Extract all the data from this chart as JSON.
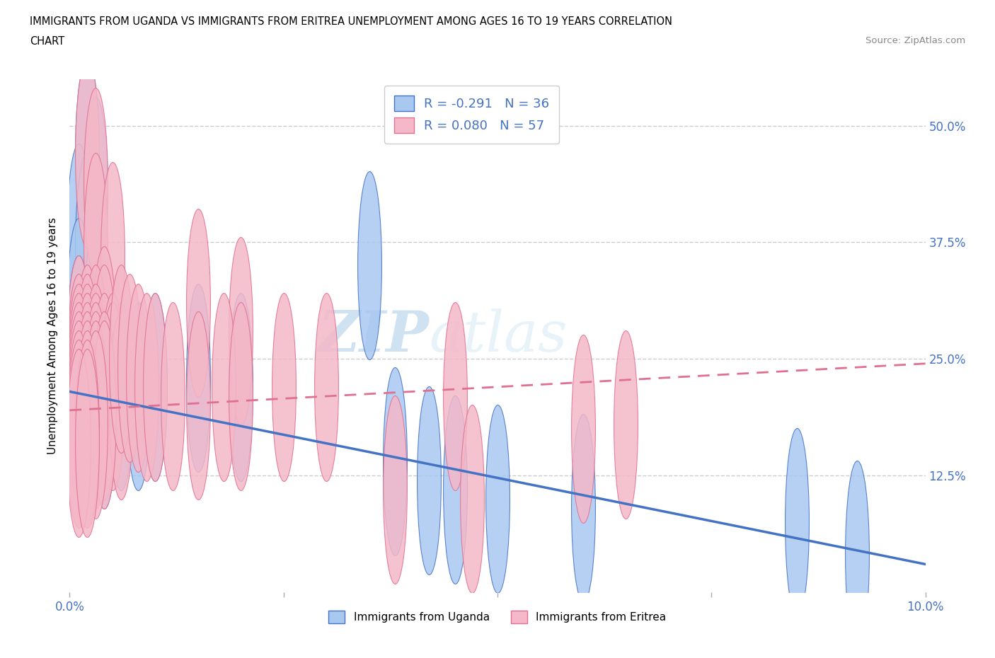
{
  "title_line1": "IMMIGRANTS FROM UGANDA VS IMMIGRANTS FROM ERITREA UNEMPLOYMENT AMONG AGES 16 TO 19 YEARS CORRELATION",
  "title_line2": "CHART",
  "source": "Source: ZipAtlas.com",
  "ylabel": "Unemployment Among Ages 16 to 19 years",
  "legend_label1": "Immigrants from Uganda",
  "legend_label2": "Immigrants from Eritrea",
  "R1": -0.291,
  "N1": 36,
  "R2": 0.08,
  "N2": 57,
  "color_uganda": "#a8c8f0",
  "color_eritrea": "#f4b8c8",
  "line_color_uganda": "#4472c4",
  "line_color_eritrea": "#e07090",
  "xlim": [
    0.0,
    0.1
  ],
  "ylim": [
    0.0,
    0.55
  ],
  "xtick_positions": [
    0.0,
    0.025,
    0.05,
    0.075,
    0.1
  ],
  "xtick_labels_show": [
    "0.0%",
    "",
    "",
    "",
    "10.0%"
  ],
  "ytick_positions": [
    0.125,
    0.25,
    0.375,
    0.5
  ],
  "ytick_labels": [
    "12.5%",
    "25.0%",
    "37.5%",
    "50.0%"
  ],
  "uganda_line_y0": 0.215,
  "uganda_line_y1": 0.03,
  "eritrea_line_y0": 0.195,
  "eritrea_line_y1": 0.245,
  "uganda_points": [
    [
      0.002,
      0.47
    ],
    [
      0.003,
      0.43
    ],
    [
      0.001,
      0.38
    ],
    [
      0.002,
      0.37
    ],
    [
      0.001,
      0.3
    ],
    [
      0.003,
      0.29
    ],
    [
      0.001,
      0.26
    ],
    [
      0.002,
      0.25
    ],
    [
      0.003,
      0.25
    ],
    [
      0.001,
      0.24
    ],
    [
      0.002,
      0.23
    ],
    [
      0.004,
      0.23
    ],
    [
      0.001,
      0.22
    ],
    [
      0.002,
      0.22
    ],
    [
      0.003,
      0.21
    ],
    [
      0.001,
      0.21
    ],
    [
      0.002,
      0.21
    ],
    [
      0.004,
      0.21
    ],
    [
      0.001,
      0.2
    ],
    [
      0.003,
      0.2
    ],
    [
      0.002,
      0.19
    ],
    [
      0.004,
      0.19
    ],
    [
      0.005,
      0.22
    ],
    [
      0.006,
      0.21
    ],
    [
      0.008,
      0.21
    ],
    [
      0.01,
      0.22
    ],
    [
      0.015,
      0.23
    ],
    [
      0.02,
      0.22
    ],
    [
      0.035,
      0.35
    ],
    [
      0.038,
      0.14
    ],
    [
      0.042,
      0.12
    ],
    [
      0.045,
      0.11
    ],
    [
      0.05,
      0.1
    ],
    [
      0.06,
      0.09
    ],
    [
      0.085,
      0.075
    ],
    [
      0.092,
      0.04
    ]
  ],
  "eritrea_points": [
    [
      0.002,
      0.47
    ],
    [
      0.003,
      0.44
    ],
    [
      0.003,
      0.37
    ],
    [
      0.005,
      0.36
    ],
    [
      0.015,
      0.31
    ],
    [
      0.02,
      0.28
    ],
    [
      0.004,
      0.27
    ],
    [
      0.001,
      0.26
    ],
    [
      0.002,
      0.25
    ],
    [
      0.003,
      0.25
    ],
    [
      0.004,
      0.25
    ],
    [
      0.001,
      0.24
    ],
    [
      0.002,
      0.24
    ],
    [
      0.001,
      0.23
    ],
    [
      0.002,
      0.23
    ],
    [
      0.003,
      0.23
    ],
    [
      0.001,
      0.22
    ],
    [
      0.002,
      0.22
    ],
    [
      0.003,
      0.22
    ],
    [
      0.004,
      0.22
    ],
    [
      0.005,
      0.22
    ],
    [
      0.001,
      0.21
    ],
    [
      0.002,
      0.21
    ],
    [
      0.003,
      0.21
    ],
    [
      0.005,
      0.21
    ],
    [
      0.001,
      0.2
    ],
    [
      0.002,
      0.2
    ],
    [
      0.003,
      0.2
    ],
    [
      0.004,
      0.2
    ],
    [
      0.006,
      0.2
    ],
    [
      0.001,
      0.19
    ],
    [
      0.002,
      0.19
    ],
    [
      0.003,
      0.19
    ],
    [
      0.004,
      0.19
    ],
    [
      0.001,
      0.18
    ],
    [
      0.002,
      0.18
    ],
    [
      0.003,
      0.18
    ],
    [
      0.001,
      0.17
    ],
    [
      0.002,
      0.17
    ],
    [
      0.001,
      0.16
    ],
    [
      0.002,
      0.16
    ],
    [
      0.006,
      0.25
    ],
    [
      0.007,
      0.24
    ],
    [
      0.008,
      0.23
    ],
    [
      0.009,
      0.22
    ],
    [
      0.01,
      0.22
    ],
    [
      0.012,
      0.21
    ],
    [
      0.015,
      0.2
    ],
    [
      0.018,
      0.22
    ],
    [
      0.02,
      0.21
    ],
    [
      0.025,
      0.22
    ],
    [
      0.03,
      0.22
    ],
    [
      0.038,
      0.11
    ],
    [
      0.045,
      0.21
    ],
    [
      0.047,
      0.1
    ],
    [
      0.06,
      0.175
    ],
    [
      0.065,
      0.18
    ]
  ]
}
